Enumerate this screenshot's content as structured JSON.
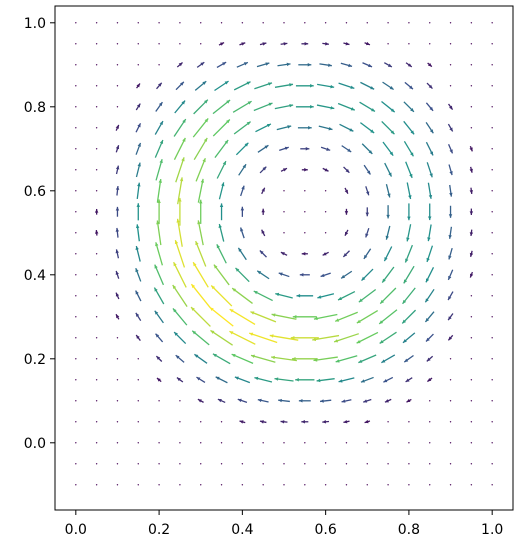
{
  "chart_data": {
    "type": "quiver",
    "title": "",
    "xlabel": "",
    "ylabel": "",
    "xlim": [
      -0.05,
      1.05
    ],
    "ylim": [
      -0.16,
      1.04
    ],
    "x_ticks": [
      "0.0",
      "0.2",
      "0.4",
      "0.6",
      "0.8",
      "1.0"
    ],
    "y_ticks": [
      "0.0",
      "0.2",
      "0.4",
      "0.6",
      "0.8",
      "1.0"
    ],
    "grid": false,
    "colormap": "viridis",
    "field": {
      "description_note": "clockwise recirculating flow filling the unit square, center near (0.55, 0.55); arrow color by speed",
      "center": [
        0.55,
        0.55
      ],
      "grid_x": [
        0.0,
        0.05,
        0.1,
        0.15,
        0.2,
        0.25,
        0.3,
        0.35,
        0.4,
        0.45,
        0.5,
        0.55,
        0.6,
        0.65,
        0.7,
        0.75,
        0.8,
        0.85,
        0.9,
        0.95,
        1.0
      ],
      "grid_y": [
        -0.1,
        -0.05,
        0.0,
        0.05,
        0.1,
        0.15,
        0.2,
        0.25,
        0.3,
        0.35,
        0.4,
        0.45,
        0.5,
        0.55,
        0.6,
        0.65,
        0.7,
        0.75,
        0.8,
        0.85,
        0.9,
        0.95,
        1.0
      ],
      "max_speed_region": [
        0.45,
        0.9
      ]
    }
  }
}
